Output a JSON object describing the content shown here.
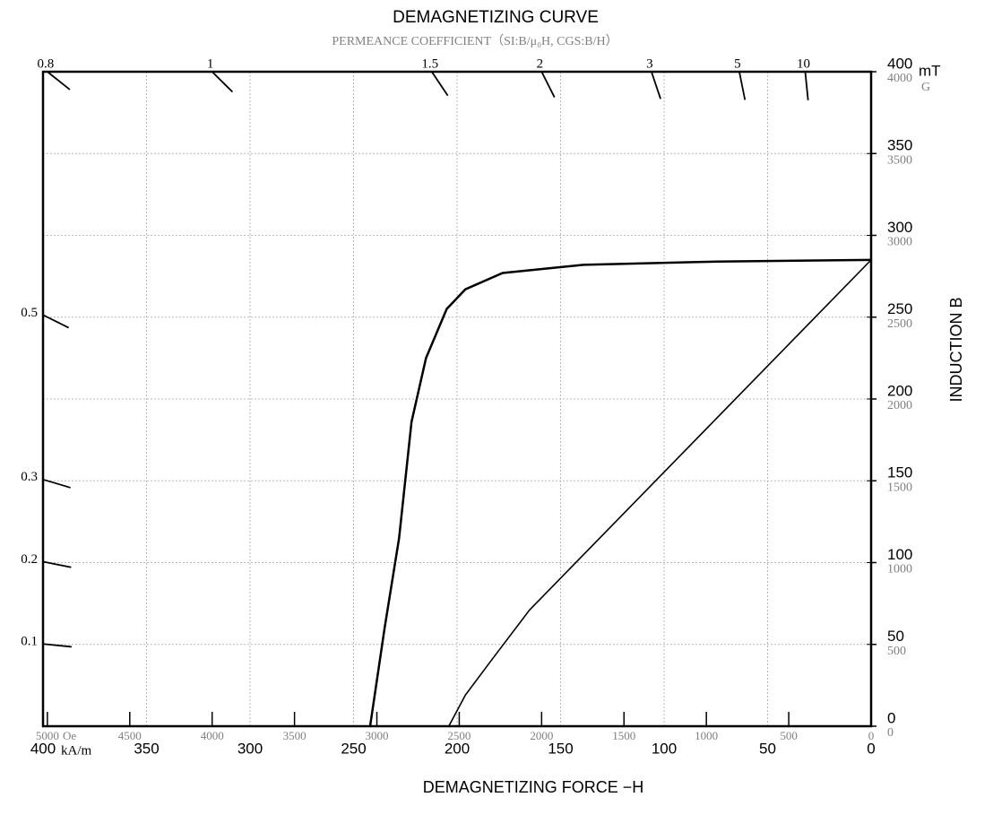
{
  "chart_data": {
    "type": "line",
    "title": "DEMAGNETIZING CURVE",
    "subtitle": "PERMEANCE COEFFICIENT（SI:B/μ₀H,  CGS:B/H）",
    "xlabel": "DEMAGNETIZING FORCE −H",
    "ylabel": "INDUCTION  B",
    "x_unit": "kA/m",
    "x2_unit": "Oe",
    "y_unit": "mT",
    "y2_unit": "G",
    "xlim": [
      400,
      0
    ],
    "xticks": [
      400,
      350,
      300,
      250,
      200,
      150,
      100,
      50,
      0
    ],
    "x2lim": [
      5026.5,
      0
    ],
    "x2ticks": [
      5000,
      4500,
      4000,
      3500,
      3000,
      2500,
      2000,
      1500,
      1000,
      500,
      0
    ],
    "ylim": [
      0,
      400
    ],
    "yticks": [
      0,
      50,
      100,
      150,
      200,
      250,
      300,
      350,
      400
    ],
    "y2lim": [
      0,
      4000
    ],
    "y2ticks": [
      0,
      500,
      1000,
      1500,
      2000,
      2500,
      3000,
      3500,
      4000
    ],
    "grid": true,
    "permeance_top": [
      0.8,
      1,
      1.5,
      2,
      3,
      5,
      10
    ],
    "permeance_left": [
      0.5,
      0.3,
      0.2,
      0.1
    ],
    "series": [
      {
        "color": "#000000",
        "x": [
          242,
          235,
          228,
          222,
          215,
          205,
          196,
          178,
          139,
          74,
          0
        ],
        "values": [
          0,
          60,
          115,
          186,
          225,
          255,
          267,
          277,
          282,
          284,
          285
        ]
      },
      {
        "color": "#000000",
        "x": [
          204,
          196,
          183,
          165,
          0
        ],
        "values": [
          0,
          19,
          41,
          71,
          285
        ]
      }
    ]
  }
}
